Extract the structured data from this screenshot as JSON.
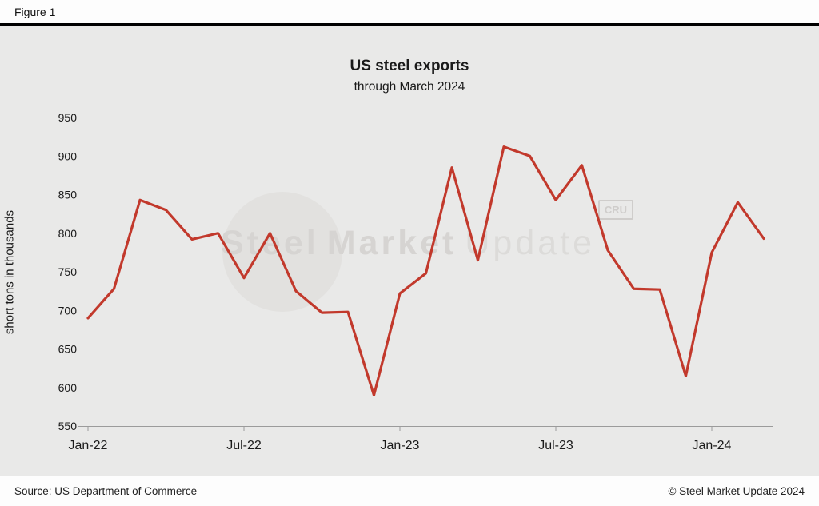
{
  "figure_label": "Figure 1",
  "footer": {
    "source": "Source: US Department of Commerce",
    "copyright": "© Steel Market Update 2024"
  },
  "watermark": {
    "word1": "Steel",
    "word2": "Market",
    "word3": "Update",
    "cru_label": "CRU"
  },
  "chart_data": {
    "type": "line",
    "title": "US steel exports",
    "subtitle": "through March 2024",
    "xlabel": "",
    "ylabel": "short tons in thousands",
    "ylim": [
      550,
      950
    ],
    "yticks": [
      550,
      600,
      650,
      700,
      750,
      800,
      850,
      900,
      950
    ],
    "grid": false,
    "legend": "none",
    "line_color": "#c2392c",
    "line_width": 3.2,
    "x": [
      "Jan-22",
      "Feb-22",
      "Mar-22",
      "Apr-22",
      "May-22",
      "Jun-22",
      "Jul-22",
      "Aug-22",
      "Sep-22",
      "Oct-22",
      "Nov-22",
      "Dec-22",
      "Jan-23",
      "Feb-23",
      "Mar-23",
      "Apr-23",
      "May-23",
      "Jun-23",
      "Jul-23",
      "Aug-23",
      "Sep-23",
      "Oct-23",
      "Nov-23",
      "Dec-23",
      "Jan-24",
      "Feb-24",
      "Mar-24"
    ],
    "xtick_labels": [
      "Jan-22",
      "Jul-22",
      "Jan-23",
      "Jul-23",
      "Jan-24"
    ],
    "xtick_positions": [
      0,
      6,
      12,
      18,
      24
    ],
    "series": [
      {
        "name": "US steel exports",
        "values": [
          690,
          728,
          843,
          830,
          792,
          800,
          742,
          800,
          725,
          697,
          698,
          590,
          722,
          748,
          885,
          765,
          912,
          900,
          843,
          888,
          778,
          728,
          727,
          615,
          775,
          840,
          793
        ]
      }
    ]
  }
}
